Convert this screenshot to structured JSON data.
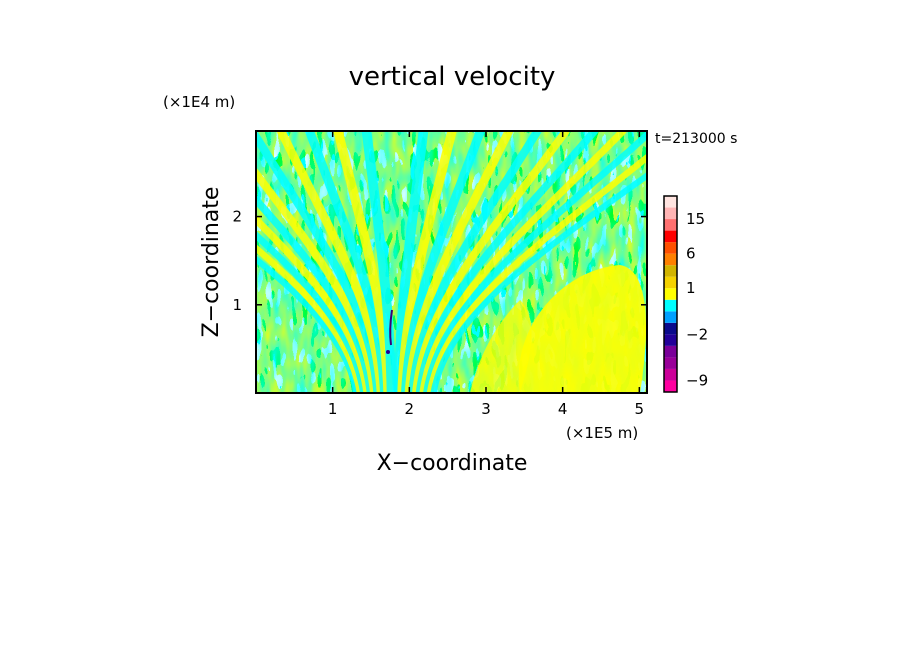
{
  "chart_data": {
    "type": "heatmap",
    "title": "vertical velocity",
    "xlabel": "X−coordinate",
    "ylabel": "Z−coordinate",
    "x_unit": "(×1E5 m)",
    "z_unit": "(×1E4 m)",
    "time_label": "t=213000 s",
    "x_ticks": [
      "1",
      "2",
      "3",
      "4",
      "5"
    ],
    "x_tick_values": [
      1,
      2,
      3,
      4,
      5
    ],
    "xlim": [
      0,
      5.1
    ],
    "z_ticks": [
      "1",
      "2"
    ],
    "z_tick_values": [
      1,
      2
    ],
    "zlim": [
      0,
      2.97
    ],
    "colorbar": {
      "labels": [
        "15",
        "6",
        "1",
        "−2",
        "−9"
      ],
      "label_values": [
        15,
        6,
        1,
        -2,
        -9
      ],
      "colors": [
        "#ff00a0",
        "#cc0099",
        "#990099",
        "#7a0099",
        "#220099",
        "#0a0a8c",
        "#00a0ff",
        "#00ffff",
        "#ffff00",
        "#f5d200",
        "#d2b400",
        "#ff8000",
        "#ff5000",
        "#ff0000",
        "#ff7070",
        "#ffb4b4",
        "#ffe4e0"
      ],
      "levels": [
        -12,
        -9,
        -6,
        -4,
        -3,
        -2,
        -1,
        0,
        0.5,
        1,
        1.5,
        3,
        6,
        9,
        12,
        15,
        18,
        22
      ]
    },
    "dominant_colors": {
      "positive": "#ffff00",
      "negative": "#00ffff"
    }
  }
}
